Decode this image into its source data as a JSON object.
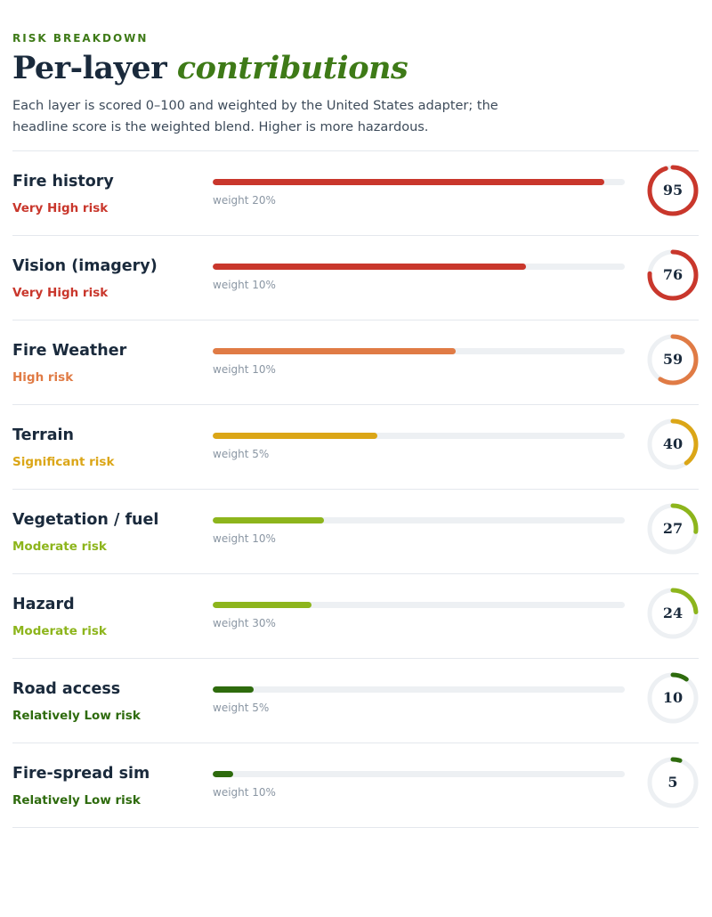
{
  "header": {
    "eyebrow": "RISK BREAKDOWN",
    "title_main": "Per-layer",
    "title_accent": "contributions",
    "description": "Each layer is scored 0–100 and weighted by the United States adapter; the headline score is the weighted blend. Higher is more hazardous."
  },
  "colors": {
    "accent": "#3e7a17",
    "very_high": "#c9372c",
    "high": "#e07b45",
    "significant": "#dba617",
    "moderate": "#8db51c",
    "relatively_low": "#2e6b0d",
    "track": "#edf0f3"
  },
  "layers": [
    {
      "name": "Fire history",
      "level": "Very High risk",
      "weight": "weight 20%",
      "score": 95,
      "color": "#c9372c"
    },
    {
      "name": "Vision (imagery)",
      "level": "Very High risk",
      "weight": "weight 10%",
      "score": 76,
      "color": "#c9372c"
    },
    {
      "name": "Fire Weather",
      "level": "High risk",
      "weight": "weight 10%",
      "score": 59,
      "color": "#e07b45"
    },
    {
      "name": "Terrain",
      "level": "Significant risk",
      "weight": "weight 5%",
      "score": 40,
      "color": "#dba617"
    },
    {
      "name": "Vegetation / fuel",
      "level": "Moderate risk",
      "weight": "weight 10%",
      "score": 27,
      "color": "#8db51c"
    },
    {
      "name": "Hazard",
      "level": "Moderate risk",
      "weight": "weight 30%",
      "score": 24,
      "color": "#8db51c"
    },
    {
      "name": "Road access",
      "level": "Relatively Low risk",
      "weight": "weight 5%",
      "score": 10,
      "color": "#2e6b0d"
    },
    {
      "name": "Fire-spread sim",
      "level": "Relatively Low risk",
      "weight": "weight 10%",
      "score": 5,
      "color": "#2e6b0d"
    }
  ]
}
